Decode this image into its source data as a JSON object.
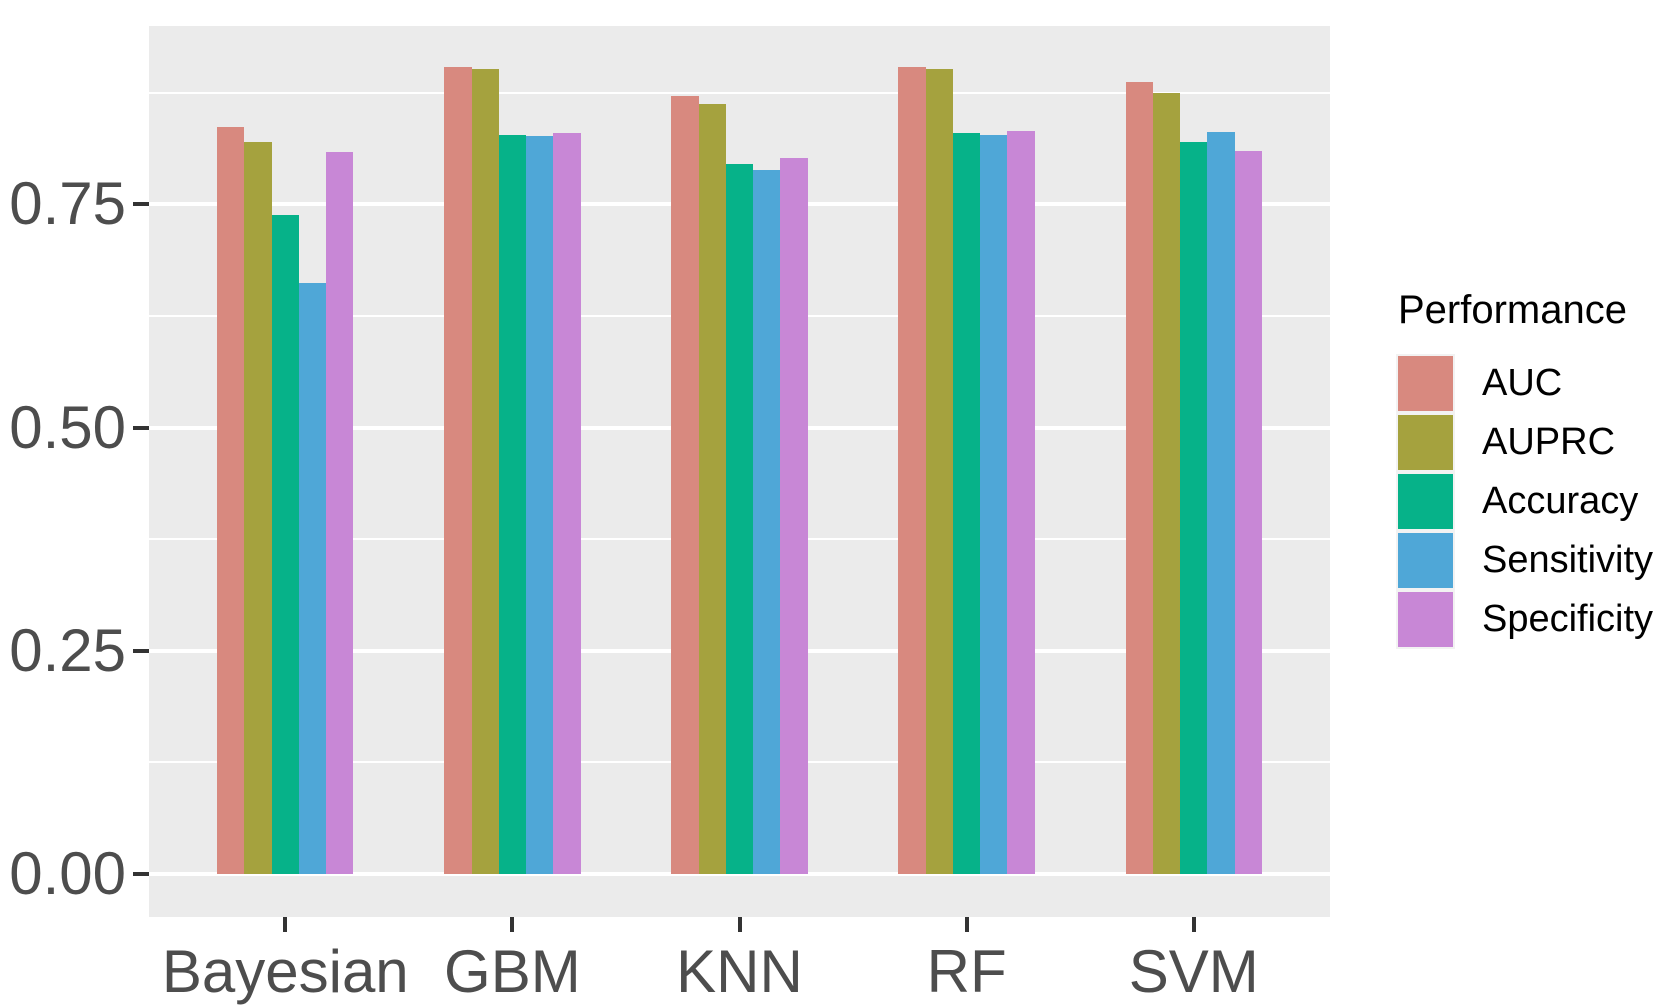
{
  "chart_data": {
    "type": "bar",
    "title": "",
    "xlabel": "",
    "ylabel": "",
    "categories": [
      "Bayesian",
      "GBM",
      "KNN",
      "RF",
      "SVM"
    ],
    "series": [
      {
        "name": "AUC",
        "color": "#D8897F",
        "values": [
          0.837,
          0.904,
          0.871,
          0.904,
          0.887
        ]
      },
      {
        "name": "AUPRC",
        "color": "#A5A23E",
        "values": [
          0.82,
          0.901,
          0.862,
          0.901,
          0.875
        ]
      },
      {
        "name": "Accuracy",
        "color": "#06B289",
        "values": [
          0.738,
          0.828,
          0.795,
          0.83,
          0.82
        ]
      },
      {
        "name": "Sensitivity",
        "color": "#4FA7D7",
        "values": [
          0.662,
          0.826,
          0.788,
          0.828,
          0.831
        ]
      },
      {
        "name": "Specificity",
        "color": "#C887D6",
        "values": [
          0.809,
          0.83,
          0.802,
          0.832,
          0.81
        ]
      }
    ],
    "ylim": [
      -0.048,
      0.95
    ],
    "yticks": [
      0.0,
      0.25,
      0.5,
      0.75
    ],
    "ytick_labels": [
      "0.00",
      "0.25",
      "0.50",
      "0.75"
    ],
    "yticks_minor": [
      0.125,
      0.375,
      0.625,
      0.875
    ],
    "legend_title": "Performance",
    "legend_position": "right",
    "grid": "major+minor",
    "panel_background": "#EBEBEB",
    "gridline_color": "#ffffff",
    "axis_text_color": "#4D4D4D",
    "legend_text_color": "#000000"
  }
}
